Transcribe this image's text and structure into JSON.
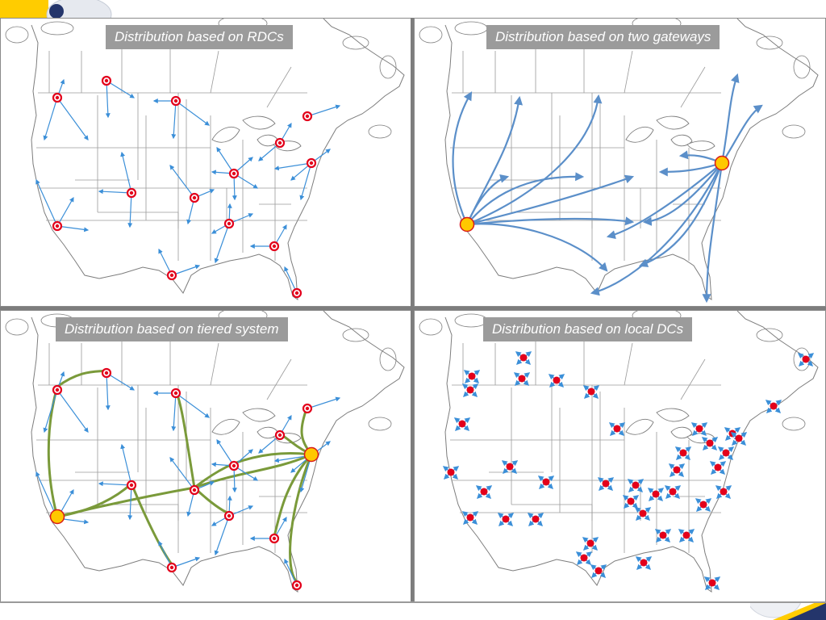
{
  "panels": [
    {
      "id": "rdc",
      "title": "Distribution based on RDCs"
    },
    {
      "id": "gateways",
      "title": "Distribution based on two gateways"
    },
    {
      "id": "tiered",
      "title": "Distribution based on tiered system"
    },
    {
      "id": "local",
      "title": "Distribution based on local DCs"
    }
  ],
  "colors": {
    "arrow": "#3b8fd8",
    "gateway_flow": "#5b8fc9",
    "tier_link": "#7a9a3a",
    "dc_red": "#e3001b",
    "gateway_yellow": "#ffc800",
    "map_line": "#7d7d7d"
  }
}
